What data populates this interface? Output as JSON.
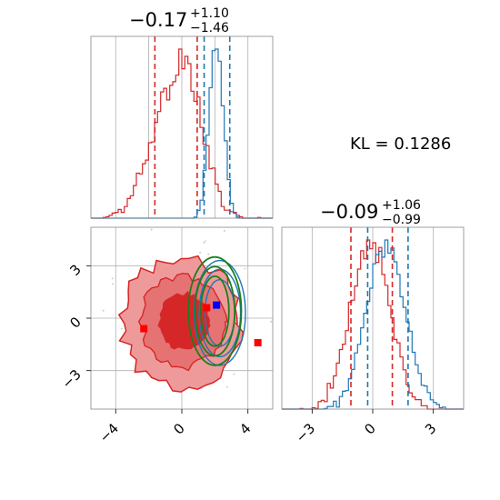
{
  "titles": {
    "panel_x1": {
      "value": "−0.17",
      "sup": "+1.10",
      "sub": "−1.46"
    },
    "panel_x2": {
      "value": "−0.09",
      "sup": "+1.06",
      "sub": "−0.99"
    }
  },
  "kl_text": "KL = 0.1286",
  "colors": {
    "red": "#d62728",
    "red_fill_light": "#ef9a9a",
    "blue": "#1f77b4",
    "green": "#1a7f1a",
    "grid": "#b0b0b0",
    "marker_blue": "#0000ff",
    "marker_red": "#ff0000"
  },
  "chart_data": [
    {
      "type": "histogram",
      "panel": "top-left",
      "title": "−0.17 (+1.10 / −1.46)",
      "xlim": [
        -5.5,
        5.5
      ],
      "grid": true,
      "series": [
        {
          "color": "red",
          "center": -0.17,
          "sd": 1.25,
          "skew": -0.6,
          "seed": 3,
          "quantiles": [
            -1.63,
            0.93
          ]
        },
        {
          "color": "blue",
          "center": 2.1,
          "sd": 0.42,
          "skew": 0,
          "seed": 7,
          "quantiles": [
            1.35,
            2.9
          ]
        }
      ]
    },
    {
      "type": "scatter",
      "panel": "bottom-left",
      "xlim": [
        -5.5,
        5.5
      ],
      "ylim": [
        -5.2,
        5.2
      ],
      "xticks": [
        -4,
        0,
        4
      ],
      "xtick_labels": [
        "−4",
        "0",
        "4"
      ],
      "yticks": [
        -3,
        0,
        3
      ],
      "ytick_labels": [
        "−3",
        "0",
        "3"
      ],
      "grid": true,
      "red_center": [
        -0.05,
        -0.3
      ],
      "green_center": [
        2.0,
        0.4
      ],
      "markers": [
        {
          "x": 2.1,
          "y": 0.75,
          "color": "marker_blue"
        },
        {
          "x": 1.5,
          "y": 0.6,
          "color": "marker_red"
        },
        {
          "x": -2.3,
          "y": -0.6,
          "color": "marker_red"
        },
        {
          "x": 4.6,
          "y": -1.4,
          "color": "marker_red"
        }
      ]
    },
    {
      "type": "histogram",
      "panel": "bottom-right",
      "title": "−0.09 (+1.06 / −0.99)",
      "xlim": [
        -4.5,
        4.5
      ],
      "xticks": [
        -3,
        0,
        3
      ],
      "xtick_labels": [
        "−3",
        "0",
        "3"
      ],
      "grid": true,
      "series": [
        {
          "color": "red",
          "center": -0.1,
          "sd": 0.95,
          "skew": 0,
          "seed": 11,
          "quantiles": [
            -1.08,
            0.97
          ]
        },
        {
          "color": "blue",
          "center": 0.65,
          "sd": 0.95,
          "skew": 0,
          "seed": 19,
          "quantiles": [
            -0.25,
            1.75
          ]
        }
      ]
    }
  ]
}
